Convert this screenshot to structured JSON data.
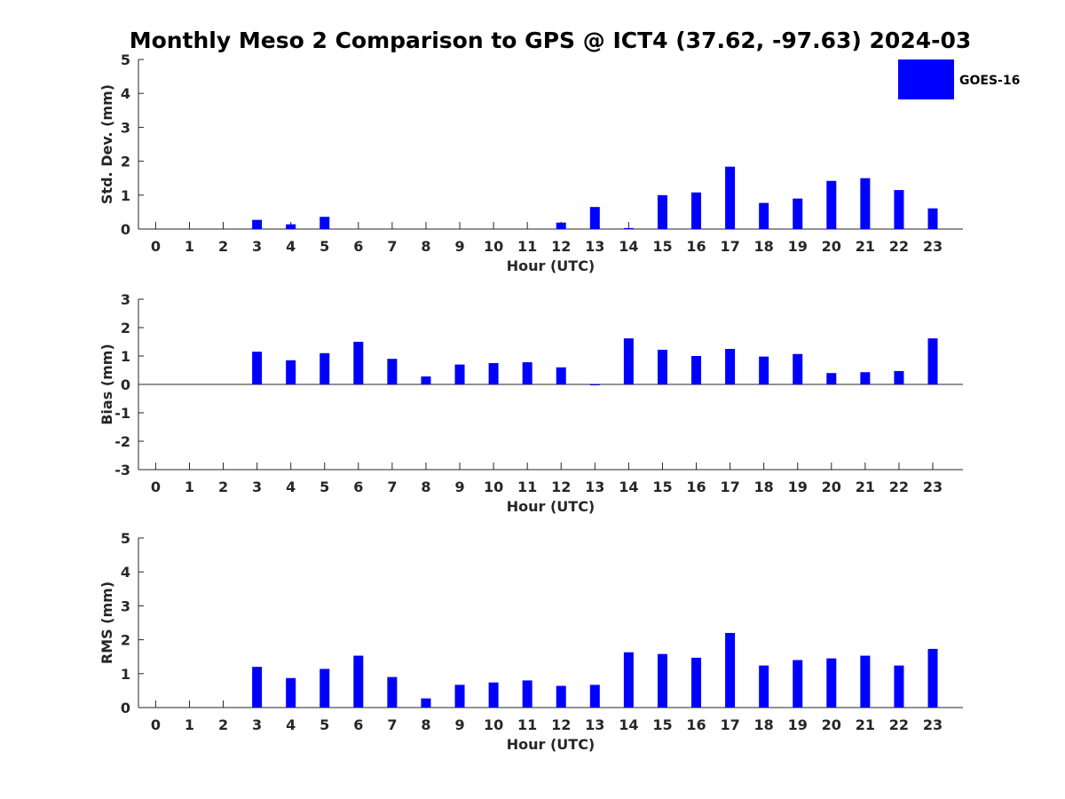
{
  "title": "Monthly Meso 2 Comparison to GPS @ ICT4 (37.62, -97.63) 2024-03",
  "legend": {
    "label": "GOES-16",
    "color": "#0000ff",
    "placement": "top-right"
  },
  "colors": {
    "bar": "#0000ff",
    "axis": "#262626"
  },
  "chart_data": [
    {
      "type": "bar",
      "name": "std-dev",
      "xlabel": "Hour (UTC)",
      "ylabel": "Std. Dev. (mm)",
      "ylim": [
        0,
        5
      ],
      "yticks": [
        "0",
        "1",
        "2",
        "3",
        "4",
        "5"
      ],
      "categories": [
        "0",
        "1",
        "2",
        "3",
        "4",
        "5",
        "6",
        "7",
        "8",
        "9",
        "10",
        "11",
        "12",
        "13",
        "14",
        "15",
        "16",
        "17",
        "18",
        "19",
        "20",
        "21",
        "22",
        "23"
      ],
      "series": [
        {
          "name": "GOES-16",
          "values": [
            null,
            null,
            null,
            0.27,
            0.14,
            0.36,
            null,
            null,
            null,
            null,
            null,
            null,
            0.19,
            0.65,
            0.03,
            1.0,
            1.08,
            1.84,
            0.77,
            0.9,
            1.42,
            1.5,
            1.15,
            0.61
          ]
        }
      ]
    },
    {
      "type": "bar",
      "name": "bias",
      "xlabel": "Hour (UTC)",
      "ylabel": "Bias (mm)",
      "ylim": [
        -3,
        3
      ],
      "yticks": [
        "-3",
        "-2",
        "-1",
        "0",
        "1",
        "2",
        "3"
      ],
      "categories": [
        "0",
        "1",
        "2",
        "3",
        "4",
        "5",
        "6",
        "7",
        "8",
        "9",
        "10",
        "11",
        "12",
        "13",
        "14",
        "15",
        "16",
        "17",
        "18",
        "19",
        "20",
        "21",
        "22",
        "23"
      ],
      "series": [
        {
          "name": "GOES-16",
          "values": [
            null,
            null,
            null,
            1.15,
            0.85,
            1.1,
            1.5,
            0.9,
            0.28,
            0.7,
            0.75,
            0.78,
            0.6,
            0.0,
            1.62,
            1.22,
            1.0,
            1.25,
            0.98,
            1.07,
            0.4,
            0.43,
            0.47,
            1.62
          ]
        }
      ]
    },
    {
      "type": "bar",
      "name": "rms",
      "xlabel": "Hour (UTC)",
      "ylabel": "RMS (mm)",
      "ylim": [
        0,
        5
      ],
      "yticks": [
        "0",
        "1",
        "2",
        "3",
        "4",
        "5"
      ],
      "categories": [
        "0",
        "1",
        "2",
        "3",
        "4",
        "5",
        "6",
        "7",
        "8",
        "9",
        "10",
        "11",
        "12",
        "13",
        "14",
        "15",
        "16",
        "17",
        "18",
        "19",
        "20",
        "21",
        "22",
        "23"
      ],
      "series": [
        {
          "name": "GOES-16",
          "values": [
            null,
            null,
            null,
            1.2,
            0.87,
            1.14,
            1.53,
            0.9,
            0.27,
            0.67,
            0.74,
            0.8,
            0.64,
            0.67,
            1.63,
            1.58,
            1.47,
            2.2,
            1.24,
            1.4,
            1.45,
            1.53,
            1.24,
            1.73
          ]
        }
      ]
    }
  ]
}
